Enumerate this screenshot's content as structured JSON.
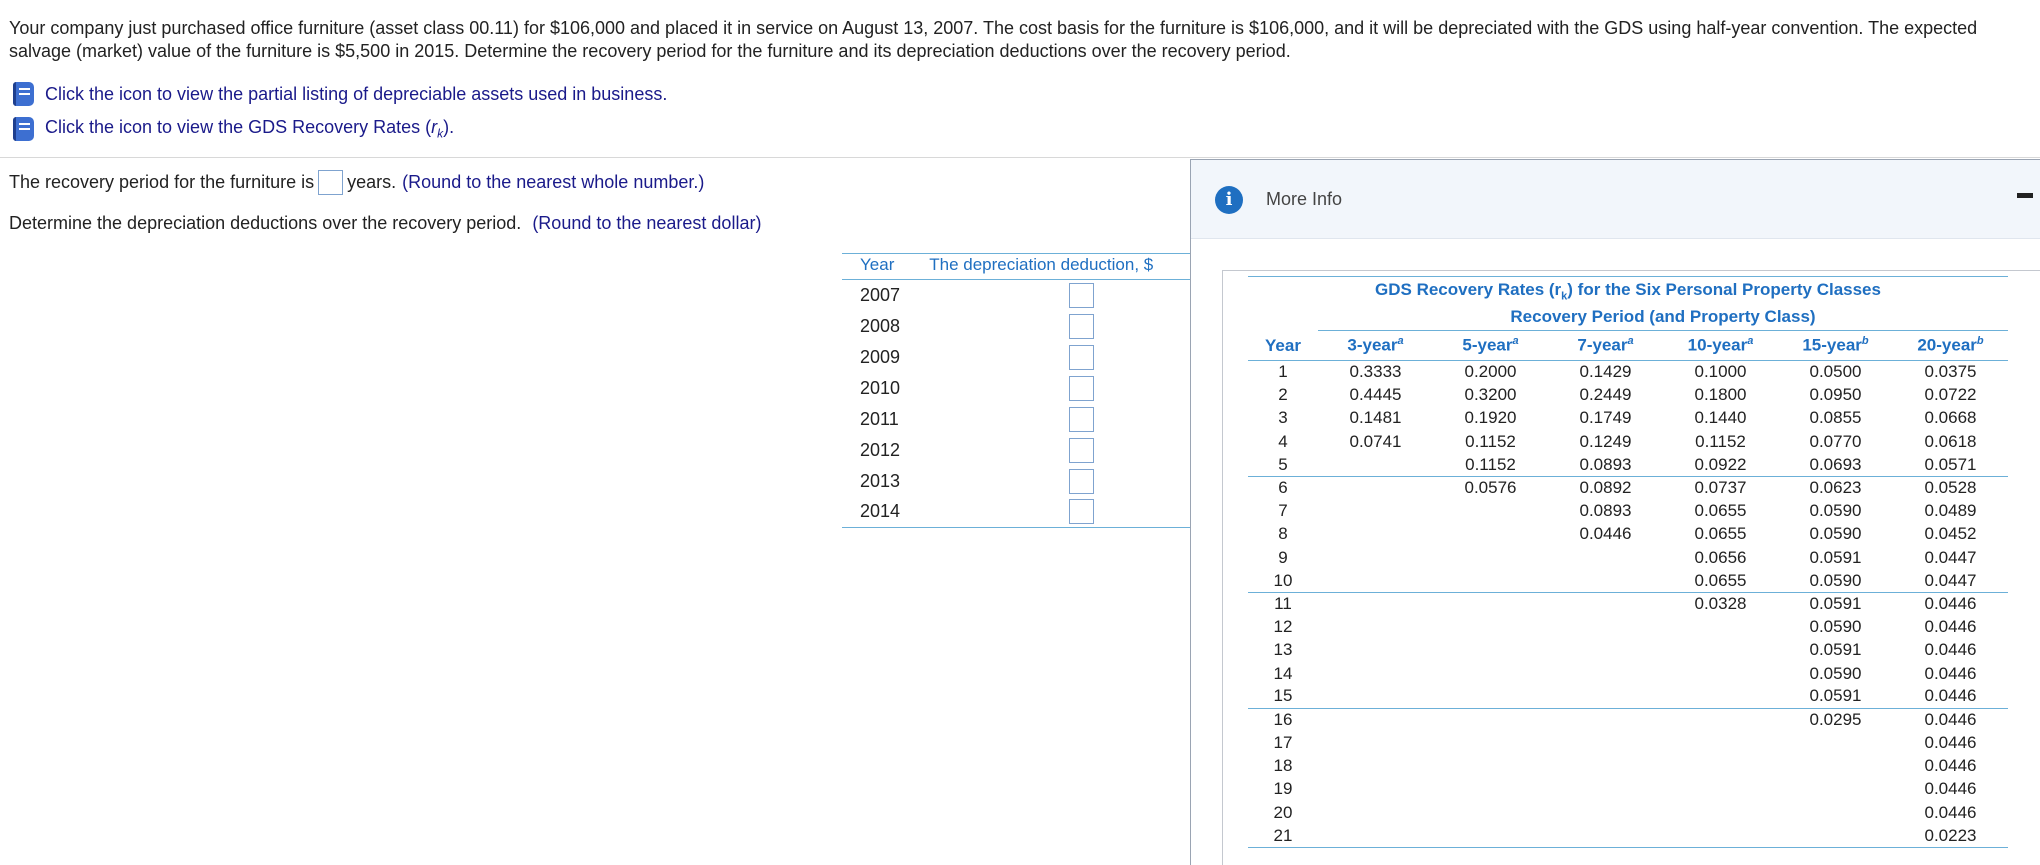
{
  "problem": {
    "text": "Your company just purchased office furniture (asset class 00.11) for $106,000 and placed it in service on August 13, 2007. The cost basis for the furniture is $106,000, and it will be depreciated with the GDS using half-year convention. The expected salvage (market) value of the furniture is $5,500 in 2015. Determine the recovery period for the furniture and its depreciation deductions over the recovery period."
  },
  "links": {
    "assets": "Click the icon to view the partial listing of depreciable assets used in business.",
    "rates_prefix": "Click the icon to view the GDS Recovery Rates (",
    "rates_r": "r",
    "rates_k": "k",
    "rates_suffix": ")."
  },
  "question1": {
    "prefix": "The recovery period for the furniture is",
    "suffix": "years.",
    "hint": "(Round to the nearest whole number.)"
  },
  "question2": {
    "text": "Determine the depreciation deductions over the recovery period.",
    "hint": "(Round to the nearest dollar)"
  },
  "dep_table": {
    "col_year": "Year",
    "col_deduction": "The depreciation deduction, $",
    "years": [
      "2007",
      "2008",
      "2009",
      "2010",
      "2011",
      "2012",
      "2013",
      "2014"
    ]
  },
  "modal": {
    "title": "More Info",
    "info_icon": "i"
  },
  "rates": {
    "title_pre": "GDS Recovery Rates (",
    "title_r": "r",
    "title_k": "k",
    "title_post": ") for the Six Personal Property Classes",
    "subtitle": "Recovery Period (and Property Class)",
    "col_year": "Year",
    "columns": [
      {
        "label": "3-year",
        "note": "a"
      },
      {
        "label": "5-year",
        "note": "a"
      },
      {
        "label": "7-year",
        "note": "a"
      },
      {
        "label": "10-year",
        "note": "a"
      },
      {
        "label": "15-year",
        "note": "b"
      },
      {
        "label": "20-year",
        "note": "b"
      }
    ],
    "rows": [
      [
        "1",
        "0.3333",
        "0.2000",
        "0.1429",
        "0.1000",
        "0.0500",
        "0.0375"
      ],
      [
        "2",
        "0.4445",
        "0.3200",
        "0.2449",
        "0.1800",
        "0.0950",
        "0.0722"
      ],
      [
        "3",
        "0.1481",
        "0.1920",
        "0.1749",
        "0.1440",
        "0.0855",
        "0.0668"
      ],
      [
        "4",
        "0.0741",
        "0.1152",
        "0.1249",
        "0.1152",
        "0.0770",
        "0.0618"
      ],
      [
        "5",
        "",
        "0.1152",
        "0.0893",
        "0.0922",
        "0.0693",
        "0.0571"
      ],
      [
        "6",
        "",
        "0.0576",
        "0.0892",
        "0.0737",
        "0.0623",
        "0.0528"
      ],
      [
        "7",
        "",
        "",
        "0.0893",
        "0.0655",
        "0.0590",
        "0.0489"
      ],
      [
        "8",
        "",
        "",
        "0.0446",
        "0.0655",
        "0.0590",
        "0.0452"
      ],
      [
        "9",
        "",
        "",
        "",
        "0.0656",
        "0.0591",
        "0.0447"
      ],
      [
        "10",
        "",
        "",
        "",
        "0.0655",
        "0.0590",
        "0.0447"
      ],
      [
        "11",
        "",
        "",
        "",
        "0.0328",
        "0.0591",
        "0.0446"
      ],
      [
        "12",
        "",
        "",
        "",
        "",
        "0.0590",
        "0.0446"
      ],
      [
        "13",
        "",
        "",
        "",
        "",
        "0.0591",
        "0.0446"
      ],
      [
        "14",
        "",
        "",
        "",
        "",
        "0.0590",
        "0.0446"
      ],
      [
        "15",
        "",
        "",
        "",
        "",
        "0.0591",
        "0.0446"
      ],
      [
        "16",
        "",
        "",
        "",
        "",
        "0.0295",
        "0.0446"
      ],
      [
        "17",
        "",
        "",
        "",
        "",
        "",
        "0.0446"
      ],
      [
        "18",
        "",
        "",
        "",
        "",
        "",
        "0.0446"
      ],
      [
        "19",
        "",
        "",
        "",
        "",
        "",
        "0.0446"
      ],
      [
        "20",
        "",
        "",
        "",
        "",
        "",
        "0.0446"
      ],
      [
        "21",
        "",
        "",
        "",
        "",
        "",
        "0.0223"
      ]
    ]
  }
}
